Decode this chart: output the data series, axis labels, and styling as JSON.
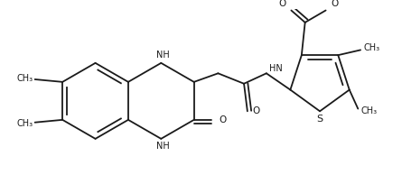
{
  "line_color": "#1a1a1a",
  "bg_color": "#ffffff",
  "line_width": 1.3,
  "figsize": [
    4.45,
    2.14
  ],
  "dpi": 100,
  "xlim": [
    0,
    445
  ],
  "ylim": [
    0,
    214
  ]
}
